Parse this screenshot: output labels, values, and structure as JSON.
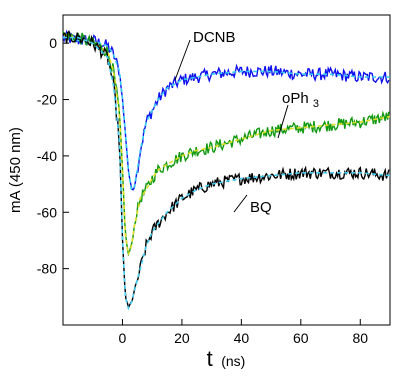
{
  "chart_data": {
    "type": "line",
    "title": "",
    "xlabel": {
      "main": "t",
      "unit": "(ns)"
    },
    "ylabel": "mA  (450 nm)",
    "xlim": [
      -20,
      90
    ],
    "ylim": [
      -100,
      10
    ],
    "xticks": [
      0,
      20,
      40,
      60,
      80
    ],
    "yticks": [
      0,
      -20,
      -40,
      -60,
      -80
    ],
    "grid": false,
    "legend": "none",
    "annotations": [
      {
        "label": "DCNB",
        "series": "DCNB"
      },
      {
        "label": "oPh",
        "sub": "3",
        "series": "oPh3"
      },
      {
        "label": "BQ",
        "series": "BQ"
      }
    ],
    "series": [
      {
        "key": "DCNB",
        "color": "#1010ee",
        "fit_color": "#33ccee",
        "x": [
          -20,
          -15,
          -10,
          -5,
          -3,
          -1,
          0,
          1,
          2,
          3,
          4,
          5,
          6,
          7,
          8,
          10,
          12,
          15,
          20,
          25,
          30,
          40,
          50,
          60,
          70,
          80,
          90
        ],
        "y": [
          2,
          1,
          1,
          -1,
          -4,
          -10,
          -20,
          -32,
          -45,
          -52,
          -51,
          -45,
          -38,
          -33,
          -28,
          -24,
          -20,
          -16,
          -13,
          -12,
          -11,
          -10,
          -10,
          -11,
          -11,
          -12,
          -12
        ]
      },
      {
        "key": "oPh3",
        "color": "#119911",
        "fit_color": "#dddd22",
        "x": [
          -20,
          -15,
          -10,
          -5,
          -3,
          -1,
          0,
          1,
          2,
          3,
          4,
          5,
          6,
          8,
          10,
          12,
          15,
          20,
          25,
          30,
          40,
          50,
          60,
          70,
          80,
          90
        ],
        "y": [
          3,
          2,
          0,
          -3,
          -10,
          -25,
          -45,
          -68,
          -75,
          -72,
          -65,
          -60,
          -55,
          -52,
          -48,
          -45,
          -43,
          -40,
          -38,
          -37,
          -34,
          -31,
          -30,
          -29,
          -28,
          -26
        ]
      },
      {
        "key": "BQ",
        "color": "#000000",
        "fit_color": "#44ccee",
        "x": [
          -20,
          -15,
          -10,
          -5,
          -3,
          -1,
          0,
          1,
          2,
          3,
          4,
          6,
          8,
          10,
          12,
          15,
          20,
          25,
          30,
          40,
          50,
          60,
          70,
          80,
          90
        ],
        "y": [
          2,
          2,
          0,
          -5,
          -15,
          -35,
          -70,
          -90,
          -94,
          -92,
          -88,
          -80,
          -72,
          -67,
          -64,
          -60,
          -55,
          -52,
          -50,
          -48,
          -47,
          -46,
          -46,
          -46,
          -47
        ]
      }
    ]
  }
}
